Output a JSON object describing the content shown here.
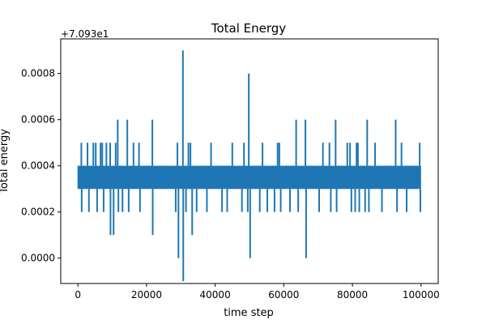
{
  "chart_data": {
    "type": "line",
    "title": "Total Energy",
    "xlabel": "time step",
    "ylabel": "Total energy",
    "offset_label": "+7.093e1",
    "xlim": [
      -5000,
      105000
    ],
    "ylim": [
      -0.00011,
      0.00095
    ],
    "x_ticks": [
      0,
      20000,
      40000,
      60000,
      80000,
      100000
    ],
    "x_tick_labels": [
      "0",
      "20000",
      "40000",
      "60000",
      "80000",
      "100000"
    ],
    "y_ticks": [
      0.0,
      0.0002,
      0.0004,
      0.0006,
      0.0008
    ],
    "y_tick_labels": [
      "0.0000",
      "0.0002",
      "0.0004",
      "0.0006",
      "0.0008"
    ],
    "grid": false,
    "series": [
      {
        "color": "#1f77b4",
        "x_range": [
          0,
          100000
        ],
        "baseline_band": [
          0.0003,
          0.0004
        ],
        "spikes": [
          {
            "x": 1000,
            "y": 0.0005
          },
          {
            "x": 1100,
            "y": 0.0002
          },
          {
            "x": 2800,
            "y": 0.0005
          },
          {
            "x": 3200,
            "y": 0.0002
          },
          {
            "x": 4500,
            "y": 0.0005
          },
          {
            "x": 5200,
            "y": 0.0005
          },
          {
            "x": 5600,
            "y": 0.0002
          },
          {
            "x": 6600,
            "y": 0.0005
          },
          {
            "x": 7100,
            "y": 0.0005
          },
          {
            "x": 7500,
            "y": 0.0002
          },
          {
            "x": 8300,
            "y": 0.0005
          },
          {
            "x": 9400,
            "y": 0.0005
          },
          {
            "x": 9500,
            "y": 0.0001
          },
          {
            "x": 10400,
            "y": 0.0001
          },
          {
            "x": 11000,
            "y": 0.0005
          },
          {
            "x": 11600,
            "y": 0.0006
          },
          {
            "x": 11800,
            "y": 0.0002
          },
          {
            "x": 13000,
            "y": 0.0002
          },
          {
            "x": 14400,
            "y": 0.0006
          },
          {
            "x": 14800,
            "y": 0.0002
          },
          {
            "x": 16200,
            "y": 0.0005
          },
          {
            "x": 17800,
            "y": 0.0005
          },
          {
            "x": 18100,
            "y": 0.0002
          },
          {
            "x": 21700,
            "y": 0.0006
          },
          {
            "x": 21800,
            "y": 0.0001
          },
          {
            "x": 28500,
            "y": 0.0002
          },
          {
            "x": 29000,
            "y": 0.0005
          },
          {
            "x": 29300,
            "y": 0.0
          },
          {
            "x": 30600,
            "y": 0.0009
          },
          {
            "x": 30700,
            "y": -0.0001
          },
          {
            "x": 31500,
            "y": 0.0002
          },
          {
            "x": 32200,
            "y": 0.0005
          },
          {
            "x": 32800,
            "y": 0.0005
          },
          {
            "x": 33300,
            "y": 0.0001
          },
          {
            "x": 34600,
            "y": 0.0002
          },
          {
            "x": 37600,
            "y": 0.0002
          },
          {
            "x": 38800,
            "y": 0.0005
          },
          {
            "x": 42000,
            "y": 0.0002
          },
          {
            "x": 43500,
            "y": 0.0002
          },
          {
            "x": 45000,
            "y": 0.0005
          },
          {
            "x": 47800,
            "y": 0.0002
          },
          {
            "x": 48400,
            "y": 0.0005
          },
          {
            "x": 49500,
            "y": 0.0002
          },
          {
            "x": 49800,
            "y": 0.0008
          },
          {
            "x": 50200,
            "y": 0.0
          },
          {
            "x": 53000,
            "y": 0.0002
          },
          {
            "x": 53800,
            "y": 0.0005
          },
          {
            "x": 55200,
            "y": 0.0002
          },
          {
            "x": 57300,
            "y": 0.0002
          },
          {
            "x": 58200,
            "y": 0.0005
          },
          {
            "x": 58700,
            "y": 0.0005
          },
          {
            "x": 59100,
            "y": 0.0002
          },
          {
            "x": 61800,
            "y": 0.0002
          },
          {
            "x": 63600,
            "y": 0.0006
          },
          {
            "x": 64200,
            "y": 0.0002
          },
          {
            "x": 66300,
            "y": 0.0006
          },
          {
            "x": 66500,
            "y": 0.0
          },
          {
            "x": 70300,
            "y": 0.0002
          },
          {
            "x": 71400,
            "y": 0.0005
          },
          {
            "x": 73300,
            "y": 0.0005
          },
          {
            "x": 73700,
            "y": 0.0002
          },
          {
            "x": 75100,
            "y": 0.0006
          },
          {
            "x": 75400,
            "y": 0.0002
          },
          {
            "x": 78500,
            "y": 0.0005
          },
          {
            "x": 79300,
            "y": 0.0005
          },
          {
            "x": 79700,
            "y": 0.0002
          },
          {
            "x": 80800,
            "y": 0.0002
          },
          {
            "x": 81200,
            "y": 0.0005
          },
          {
            "x": 81600,
            "y": 0.0005
          },
          {
            "x": 82000,
            "y": 0.0002
          },
          {
            "x": 83700,
            "y": 0.0002
          },
          {
            "x": 84300,
            "y": 0.0006
          },
          {
            "x": 84800,
            "y": 0.0002
          },
          {
            "x": 86600,
            "y": 0.0005
          },
          {
            "x": 88600,
            "y": 0.0002
          },
          {
            "x": 92600,
            "y": 0.0006
          },
          {
            "x": 93000,
            "y": 0.0002
          },
          {
            "x": 94300,
            "y": 0.0005
          },
          {
            "x": 95800,
            "y": 0.0002
          },
          {
            "x": 99600,
            "y": 0.0005
          },
          {
            "x": 99800,
            "y": 0.0002
          }
        ]
      }
    ]
  }
}
